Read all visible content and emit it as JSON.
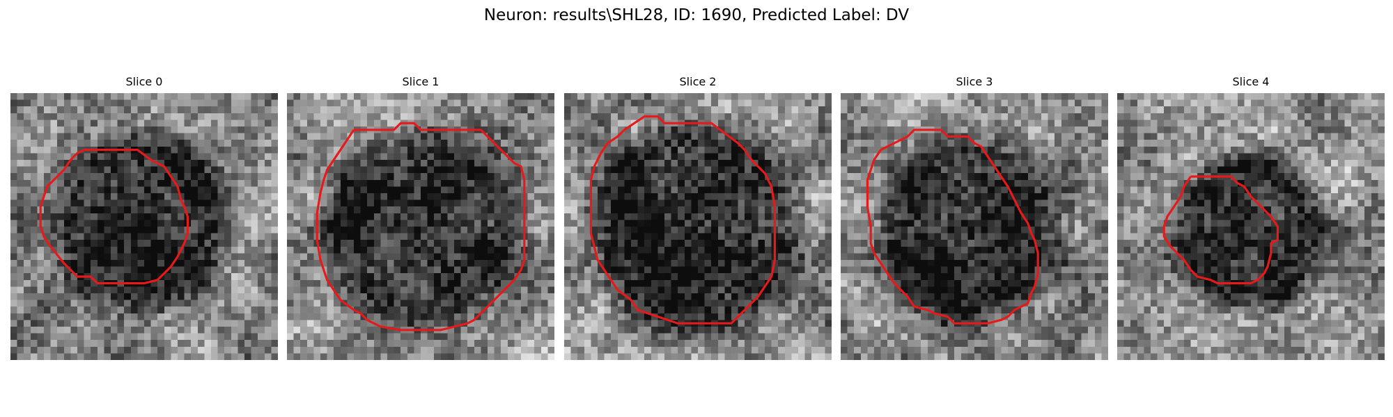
{
  "figure": {
    "title": "Neuron: results\\SHL28, ID: 1690, Predicted Label: DV"
  },
  "panels": [
    {
      "title": "Slice 0",
      "seed": 11,
      "blob": {
        "cx": 19.5,
        "cy": 19.5,
        "r": 13.0,
        "depth": 0.42
      },
      "contour": [
        [
          11,
          8.5
        ],
        [
          14,
          8.5
        ],
        [
          19,
          8.5
        ],
        [
          21,
          10
        ],
        [
          23,
          11
        ],
        [
          24,
          12.5
        ],
        [
          25,
          14
        ],
        [
          25.5,
          16
        ],
        [
          26,
          17
        ],
        [
          26.5,
          18.5
        ],
        [
          26.5,
          21
        ],
        [
          26,
          22.5
        ],
        [
          25,
          24.5
        ],
        [
          24,
          26
        ],
        [
          23,
          27
        ],
        [
          22,
          28
        ],
        [
          20,
          28.5
        ],
        [
          17,
          28.5
        ],
        [
          13,
          28.5
        ],
        [
          12,
          27.5
        ],
        [
          10,
          27.5
        ],
        [
          8,
          25.5
        ],
        [
          6,
          23
        ],
        [
          5,
          21.5
        ],
        [
          4.5,
          20
        ],
        [
          4.5,
          17
        ],
        [
          5,
          15.5
        ],
        [
          5.5,
          14
        ],
        [
          7,
          12.5
        ],
        [
          8,
          11.5
        ],
        [
          9,
          10
        ],
        [
          10,
          9
        ]
      ],
      "corner": "#f7f7f7"
    },
    {
      "title": "Slice 1",
      "seed": 29,
      "blob": {
        "cx": 20.5,
        "cy": 20.5,
        "r": 15.0,
        "depth": 0.38
      },
      "contour": [
        [
          10,
          5.5
        ],
        [
          14,
          5.5
        ],
        [
          16,
          5.5
        ],
        [
          17,
          4.5
        ],
        [
          19,
          4.5
        ],
        [
          20,
          5.5
        ],
        [
          23,
          5.5
        ],
        [
          29,
          5.5
        ],
        [
          30,
          6.5
        ],
        [
          31,
          7.5
        ],
        [
          32,
          8.5
        ],
        [
          33,
          9.5
        ],
        [
          34,
          10.5
        ],
        [
          35,
          11
        ],
        [
          35.5,
          13
        ],
        [
          35.5,
          19
        ],
        [
          35.5,
          25
        ],
        [
          35,
          26.5
        ],
        [
          34,
          28
        ],
        [
          33,
          29
        ],
        [
          32,
          30
        ],
        [
          31,
          31
        ],
        [
          30,
          32
        ],
        [
          29,
          33
        ],
        [
          28,
          34
        ],
        [
          27,
          34.5
        ],
        [
          25,
          35
        ],
        [
          23,
          35.5
        ],
        [
          17,
          35.5
        ],
        [
          14,
          35
        ],
        [
          13,
          34.5
        ],
        [
          12,
          34
        ],
        [
          11,
          33
        ],
        [
          10,
          32.5
        ],
        [
          8,
          31
        ],
        [
          7,
          29.5
        ],
        [
          6,
          28
        ],
        [
          5.5,
          26.5
        ],
        [
          5,
          25
        ],
        [
          4.5,
          22
        ],
        [
          4.5,
          18
        ],
        [
          5,
          15
        ],
        [
          5.5,
          13
        ],
        [
          6,
          11.5
        ],
        [
          7,
          10
        ],
        [
          8,
          8.5
        ],
        [
          9,
          7
        ]
      ],
      "corner": "#f4f4f4"
    },
    {
      "title": "Slice 2",
      "seed": 47,
      "blob": {
        "cx": 19.5,
        "cy": 20.5,
        "r": 16.0,
        "depth": 0.4
      },
      "contour": [
        [
          9,
          5.5
        ],
        [
          12,
          3.5
        ],
        [
          14,
          3.5
        ],
        [
          15,
          4.5
        ],
        [
          22,
          4.5
        ],
        [
          24,
          6
        ],
        [
          26,
          7.5
        ],
        [
          27,
          8.5
        ],
        [
          28,
          10
        ],
        [
          29,
          11
        ],
        [
          30,
          12
        ],
        [
          31,
          14
        ],
        [
          31.5,
          17
        ],
        [
          31.5,
          25
        ],
        [
          31,
          27.5
        ],
        [
          30,
          29
        ],
        [
          29,
          30.5
        ],
        [
          28,
          31.5
        ],
        [
          27,
          32.5
        ],
        [
          26,
          33.5
        ],
        [
          25,
          34.5
        ],
        [
          17,
          34.5
        ],
        [
          14,
          33.5
        ],
        [
          11,
          32.5
        ],
        [
          10,
          31
        ],
        [
          8,
          29.5
        ],
        [
          7,
          28
        ],
        [
          6,
          26.5
        ],
        [
          5,
          25
        ],
        [
          4.5,
          23
        ],
        [
          4,
          21
        ],
        [
          4,
          13
        ],
        [
          4.5,
          11
        ],
        [
          5.5,
          9
        ],
        [
          6.5,
          7.5
        ],
        [
          8,
          6.5
        ]
      ],
      "corner": "#f0f0f0"
    },
    {
      "title": "Slice 3",
      "seed": 63,
      "blob": {
        "cx": 19.5,
        "cy": 20.5,
        "r": 14.0,
        "depth": 0.36
      },
      "contour": [
        [
          6,
          8.5
        ],
        [
          8,
          7.5
        ],
        [
          10,
          6.5
        ],
        [
          11,
          5.5
        ],
        [
          14,
          5.5
        ],
        [
          15,
          5.5
        ],
        [
          16,
          6.5
        ],
        [
          17,
          6.5
        ],
        [
          19,
          6.5
        ],
        [
          20,
          7.5
        ],
        [
          21,
          8
        ],
        [
          22,
          9.5
        ],
        [
          23,
          11
        ],
        [
          24,
          12.5
        ],
        [
          25,
          14
        ],
        [
          26,
          16
        ],
        [
          27,
          18
        ],
        [
          28,
          19.5
        ],
        [
          28.5,
          21
        ],
        [
          29,
          22
        ],
        [
          29.5,
          24
        ],
        [
          29.5,
          27
        ],
        [
          29,
          29
        ],
        [
          28.5,
          30
        ],
        [
          28,
          31.5
        ],
        [
          27,
          32
        ],
        [
          26,
          32.5
        ],
        [
          25,
          33.5
        ],
        [
          24,
          34
        ],
        [
          22,
          34.5
        ],
        [
          20,
          34.5
        ],
        [
          17,
          34.5
        ],
        [
          16,
          33.5
        ],
        [
          14,
          33
        ],
        [
          13,
          32.5
        ],
        [
          11,
          32
        ],
        [
          10,
          30.5
        ],
        [
          9,
          29.5
        ],
        [
          8,
          28.5
        ],
        [
          7,
          27
        ],
        [
          6,
          25.5
        ],
        [
          5,
          24
        ],
        [
          4.5,
          22.5
        ],
        [
          4.5,
          20
        ],
        [
          4,
          17
        ],
        [
          4,
          13
        ],
        [
          4.5,
          11.5
        ],
        [
          5,
          10
        ]
      ],
      "corner": "#f2f2f2"
    },
    {
      "title": "Slice 4",
      "seed": 83,
      "blob": {
        "cx": 20.0,
        "cy": 21.0,
        "r": 11.5,
        "depth": 0.34
      },
      "contour": [
        [
          11,
          12.5
        ],
        [
          12,
          12.5
        ],
        [
          16,
          12.5
        ],
        [
          17,
          12.5
        ],
        [
          18,
          13.5
        ],
        [
          19,
          14
        ],
        [
          20,
          15.5
        ],
        [
          21,
          16.5
        ],
        [
          22,
          17.5
        ],
        [
          23,
          18.5
        ],
        [
          24,
          20
        ],
        [
          24,
          22
        ],
        [
          23,
          22.5
        ],
        [
          23,
          24
        ],
        [
          22.5,
          26
        ],
        [
          22,
          27
        ],
        [
          21,
          28
        ],
        [
          20,
          28.5
        ],
        [
          17,
          28.5
        ],
        [
          15,
          28.5
        ],
        [
          14,
          28
        ],
        [
          12,
          27.5
        ],
        [
          11,
          26.5
        ],
        [
          10,
          25
        ],
        [
          9,
          24
        ],
        [
          8,
          23
        ],
        [
          7,
          21.5
        ],
        [
          7,
          20
        ],
        [
          7.5,
          18.5
        ],
        [
          8.5,
          17
        ],
        [
          9.5,
          15.5
        ],
        [
          10,
          14
        ]
      ],
      "corner": "#f5f5f5"
    }
  ]
}
